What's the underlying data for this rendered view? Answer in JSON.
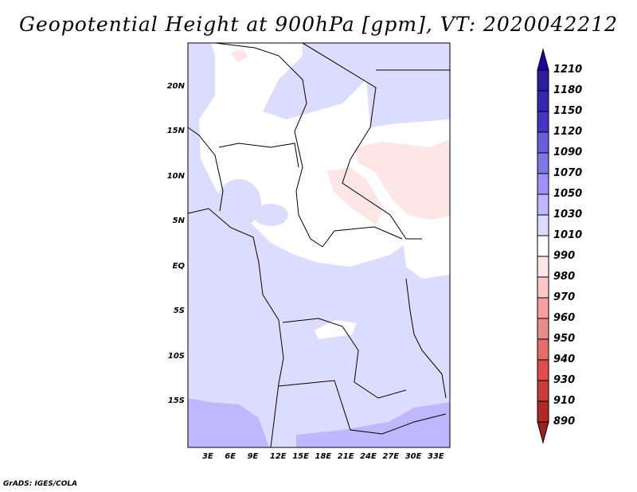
{
  "title": "Geopotential Height at 900hPa [gpm], VT: 2020042212",
  "footer": "GrADS: IGES/COLA",
  "lat_labels": [
    "20N",
    "15N",
    "10N",
    "5N",
    "EQ",
    "5S",
    "10S",
    "15S"
  ],
  "lon_labels": [
    "3E",
    "6E",
    "9E",
    "12E",
    "15E",
    "18E",
    "21E",
    "24E",
    "27E",
    "30E",
    "33E"
  ],
  "colorbar": {
    "labels": [
      "1210",
      "1180",
      "1150",
      "1120",
      "1090",
      "1070",
      "1050",
      "1030",
      "1010",
      "990",
      "980",
      "970",
      "960",
      "950",
      "940",
      "930",
      "910",
      "890"
    ],
    "colors": [
      "#2b1fa0",
      "#3626b0",
      "#4436c0",
      "#6a5fd8",
      "#7f76e6",
      "#9f8fff",
      "#c0b8ff",
      "#dcdcff",
      "#ffffff",
      "#ffe6e6",
      "#ffc8c8",
      "#f8a0a0",
      "#e88c8c",
      "#e46c6c",
      "#e04c4c",
      "#c83c3c",
      "#b02a2a"
    ],
    "top_arrow_color": "#2000a0",
    "bottom_arrow_color": "#a02020"
  }
}
